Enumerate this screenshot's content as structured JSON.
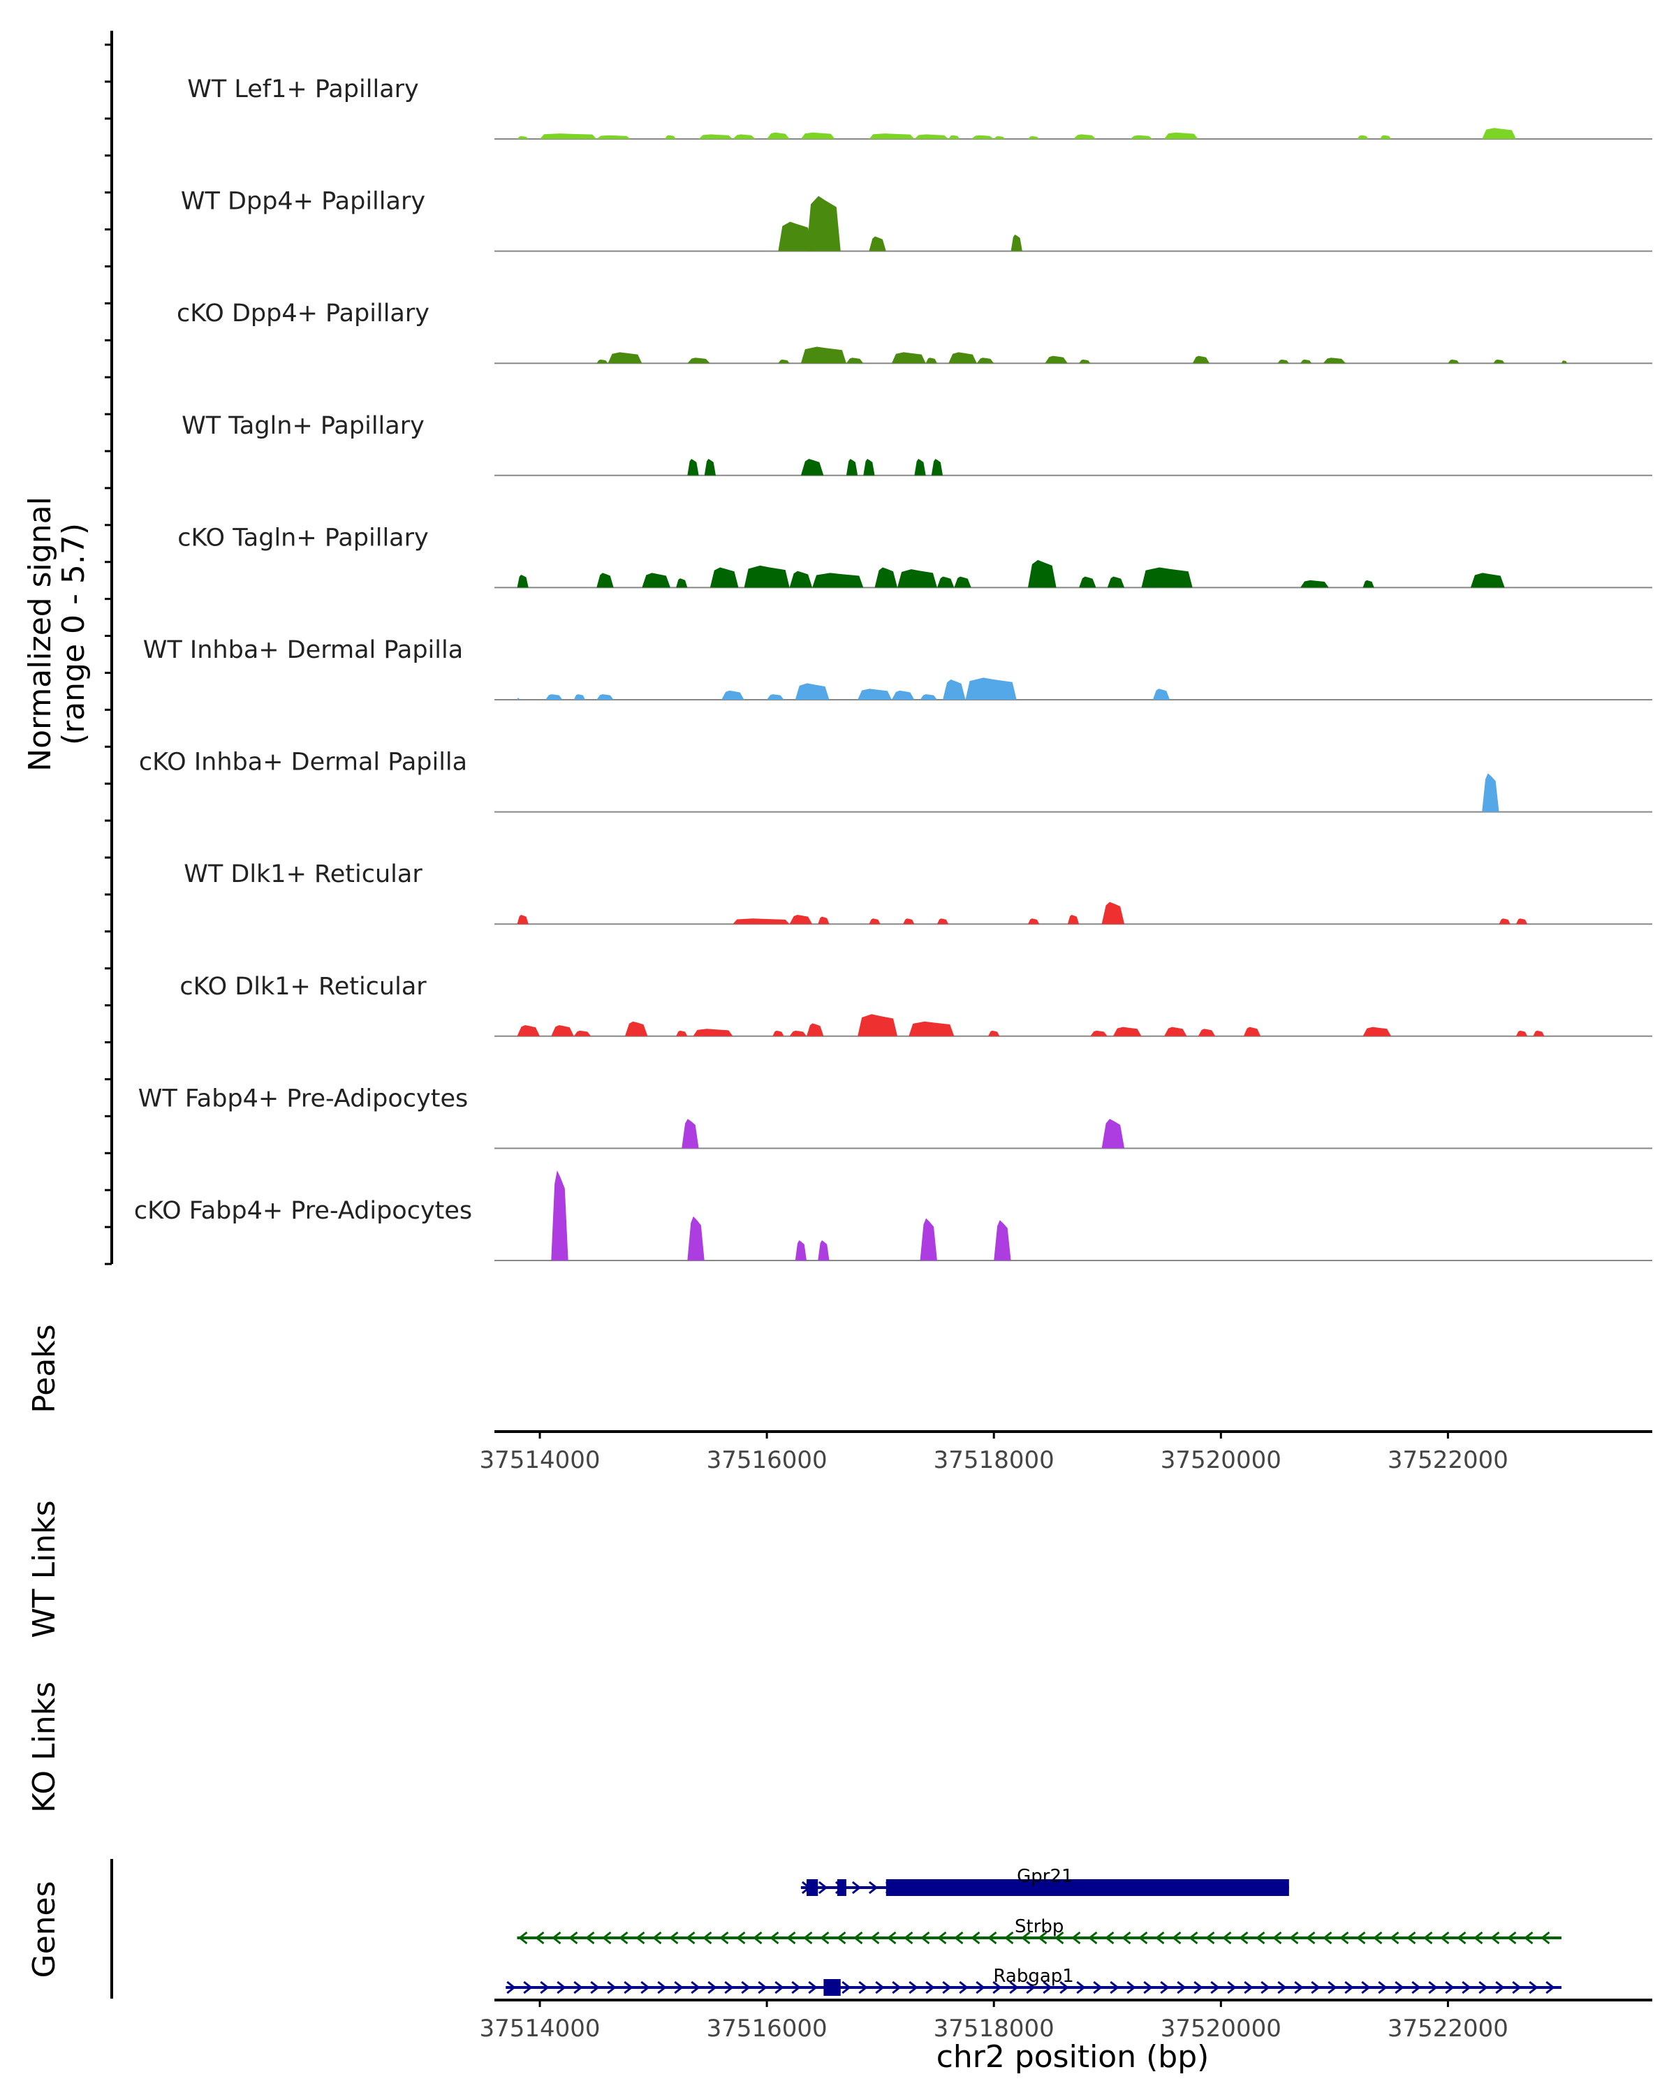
{
  "chart_data": {
    "type": "area",
    "subtype": "genome-coverage-tracks",
    "y_axis_label": "Normalized signal",
    "y_axis_range_label": "(range 0 - 5.7)",
    "ylim": [
      0,
      5.7
    ],
    "x_axis_label": "chr2 position (bp)",
    "xlim": [
      37513600,
      37523800
    ],
    "x_ticks": [
      {
        "value": 37514000,
        "label": "37514000"
      },
      {
        "value": 37516000,
        "label": "37516000"
      },
      {
        "value": 37518000,
        "label": "37518000"
      },
      {
        "value": 37520000,
        "label": "37520000"
      },
      {
        "value": 37522000,
        "label": "37522000"
      }
    ],
    "tracks": [
      {
        "name": "WT Lef1+ Papillary",
        "color": "#7cd424",
        "peaks": [
          {
            "start": 37513800,
            "end": 37513900,
            "h": 0.15
          },
          {
            "start": 37514000,
            "end": 37514500,
            "h": 0.3
          },
          {
            "start": 37514500,
            "end": 37514800,
            "h": 0.2
          },
          {
            "start": 37515100,
            "end": 37515200,
            "h": 0.2
          },
          {
            "start": 37515400,
            "end": 37515700,
            "h": 0.25
          },
          {
            "start": 37515700,
            "end": 37515900,
            "h": 0.25
          },
          {
            "start": 37516000,
            "end": 37516200,
            "h": 0.35
          },
          {
            "start": 37516300,
            "end": 37516600,
            "h": 0.35
          },
          {
            "start": 37516900,
            "end": 37517300,
            "h": 0.3
          },
          {
            "start": 37517300,
            "end": 37517600,
            "h": 0.25
          },
          {
            "start": 37517600,
            "end": 37517700,
            "h": 0.2
          },
          {
            "start": 37517800,
            "end": 37518000,
            "h": 0.2
          },
          {
            "start": 37518000,
            "end": 37518100,
            "h": 0.15
          },
          {
            "start": 37518300,
            "end": 37518400,
            "h": 0.15
          },
          {
            "start": 37518700,
            "end": 37518900,
            "h": 0.25
          },
          {
            "start": 37519200,
            "end": 37519400,
            "h": 0.2
          },
          {
            "start": 37519500,
            "end": 37519800,
            "h": 0.35
          },
          {
            "start": 37521200,
            "end": 37521300,
            "h": 0.2
          },
          {
            "start": 37521400,
            "end": 37521500,
            "h": 0.2
          },
          {
            "start": 37522300,
            "end": 37522600,
            "h": 0.6
          }
        ]
      },
      {
        "name": "WT Dpp4+ Papillary",
        "color": "#4a8b0f",
        "peaks": [
          {
            "start": 37516100,
            "end": 37516400,
            "h": 1.6
          },
          {
            "start": 37516350,
            "end": 37516650,
            "h": 3.0
          },
          {
            "start": 37516900,
            "end": 37517050,
            "h": 0.8
          },
          {
            "start": 37518150,
            "end": 37518250,
            "h": 0.9
          }
        ]
      },
      {
        "name": "cKO Dpp4+ Papillary",
        "color": "#4a8b0f",
        "peaks": [
          {
            "start": 37514500,
            "end": 37514600,
            "h": 0.2
          },
          {
            "start": 37514600,
            "end": 37514900,
            "h": 0.6
          },
          {
            "start": 37515300,
            "end": 37515500,
            "h": 0.3
          },
          {
            "start": 37516100,
            "end": 37516200,
            "h": 0.2
          },
          {
            "start": 37516300,
            "end": 37516700,
            "h": 0.9
          },
          {
            "start": 37516700,
            "end": 37516850,
            "h": 0.3
          },
          {
            "start": 37517100,
            "end": 37517400,
            "h": 0.6
          },
          {
            "start": 37517400,
            "end": 37517500,
            "h": 0.3
          },
          {
            "start": 37517600,
            "end": 37517850,
            "h": 0.6
          },
          {
            "start": 37517850,
            "end": 37518000,
            "h": 0.3
          },
          {
            "start": 37518450,
            "end": 37518650,
            "h": 0.4
          },
          {
            "start": 37518750,
            "end": 37518850,
            "h": 0.2
          },
          {
            "start": 37519750,
            "end": 37519900,
            "h": 0.4
          },
          {
            "start": 37520500,
            "end": 37520600,
            "h": 0.2
          },
          {
            "start": 37520700,
            "end": 37520800,
            "h": 0.2
          },
          {
            "start": 37520900,
            "end": 37521100,
            "h": 0.3
          },
          {
            "start": 37522000,
            "end": 37522100,
            "h": 0.2
          },
          {
            "start": 37522400,
            "end": 37522500,
            "h": 0.2
          },
          {
            "start": 37523000,
            "end": 37523050,
            "h": 0.15
          }
        ]
      },
      {
        "name": "WT Tagln+ Papillary",
        "color": "#006400",
        "peaks": [
          {
            "start": 37515300,
            "end": 37515400,
            "h": 0.9
          },
          {
            "start": 37515450,
            "end": 37515550,
            "h": 0.9
          },
          {
            "start": 37516300,
            "end": 37516500,
            "h": 0.9
          },
          {
            "start": 37516700,
            "end": 37516800,
            "h": 0.9
          },
          {
            "start": 37516850,
            "end": 37516950,
            "h": 0.9
          },
          {
            "start": 37517300,
            "end": 37517400,
            "h": 0.9
          },
          {
            "start": 37517450,
            "end": 37517550,
            "h": 0.9
          }
        ]
      },
      {
        "name": "cKO Tagln+ Papillary",
        "color": "#006400",
        "peaks": [
          {
            "start": 37513800,
            "end": 37513900,
            "h": 0.7
          },
          {
            "start": 37514500,
            "end": 37514650,
            "h": 0.8
          },
          {
            "start": 37514900,
            "end": 37515150,
            "h": 0.8
          },
          {
            "start": 37515200,
            "end": 37515300,
            "h": 0.5
          },
          {
            "start": 37515500,
            "end": 37515750,
            "h": 1.1
          },
          {
            "start": 37515800,
            "end": 37516200,
            "h": 1.2
          },
          {
            "start": 37516200,
            "end": 37516400,
            "h": 0.9
          },
          {
            "start": 37516400,
            "end": 37516850,
            "h": 0.8
          },
          {
            "start": 37516950,
            "end": 37517150,
            "h": 1.1
          },
          {
            "start": 37517150,
            "end": 37517500,
            "h": 1.0
          },
          {
            "start": 37517500,
            "end": 37517650,
            "h": 0.6
          },
          {
            "start": 37517650,
            "end": 37517800,
            "h": 0.6
          },
          {
            "start": 37518300,
            "end": 37518550,
            "h": 1.5
          },
          {
            "start": 37518750,
            "end": 37518900,
            "h": 0.6
          },
          {
            "start": 37519000,
            "end": 37519150,
            "h": 0.6
          },
          {
            "start": 37519300,
            "end": 37519750,
            "h": 1.1
          },
          {
            "start": 37520700,
            "end": 37520950,
            "h": 0.4
          },
          {
            "start": 37521250,
            "end": 37521350,
            "h": 0.4
          },
          {
            "start": 37522200,
            "end": 37522500,
            "h": 0.8
          }
        ]
      },
      {
        "name": "WT Inhba+ Dermal Papilla",
        "color": "#55a8e8",
        "peaks": [
          {
            "start": 37513800,
            "end": 37513820,
            "h": 0.1
          },
          {
            "start": 37514050,
            "end": 37514200,
            "h": 0.3
          },
          {
            "start": 37514300,
            "end": 37514400,
            "h": 0.3
          },
          {
            "start": 37514500,
            "end": 37514650,
            "h": 0.3
          },
          {
            "start": 37515600,
            "end": 37515800,
            "h": 0.5
          },
          {
            "start": 37516000,
            "end": 37516150,
            "h": 0.3
          },
          {
            "start": 37516250,
            "end": 37516550,
            "h": 0.9
          },
          {
            "start": 37516800,
            "end": 37517100,
            "h": 0.6
          },
          {
            "start": 37517100,
            "end": 37517300,
            "h": 0.5
          },
          {
            "start": 37517350,
            "end": 37517500,
            "h": 0.3
          },
          {
            "start": 37517550,
            "end": 37517750,
            "h": 1.1
          },
          {
            "start": 37517750,
            "end": 37518200,
            "h": 1.2
          },
          {
            "start": 37519400,
            "end": 37519550,
            "h": 0.6
          }
        ]
      },
      {
        "name": "cKO Inhba+ Dermal Papilla",
        "color": "#55a8e8",
        "peaks": [
          {
            "start": 37522300,
            "end": 37522450,
            "h": 2.1
          }
        ]
      },
      {
        "name": "WT Dlk1+ Reticular",
        "color": "#ee3030",
        "peaks": [
          {
            "start": 37513800,
            "end": 37513900,
            "h": 0.5
          },
          {
            "start": 37515700,
            "end": 37516200,
            "h": 0.3
          },
          {
            "start": 37516200,
            "end": 37516400,
            "h": 0.5
          },
          {
            "start": 37516450,
            "end": 37516550,
            "h": 0.4
          },
          {
            "start": 37516900,
            "end": 37517000,
            "h": 0.3
          },
          {
            "start": 37517200,
            "end": 37517300,
            "h": 0.3
          },
          {
            "start": 37517500,
            "end": 37517600,
            "h": 0.3
          },
          {
            "start": 37518300,
            "end": 37518400,
            "h": 0.3
          },
          {
            "start": 37518650,
            "end": 37518750,
            "h": 0.5
          },
          {
            "start": 37518950,
            "end": 37519150,
            "h": 1.2
          },
          {
            "start": 37522450,
            "end": 37522550,
            "h": 0.3
          },
          {
            "start": 37522600,
            "end": 37522700,
            "h": 0.3
          }
        ]
      },
      {
        "name": "cKO Dlk1+ Reticular",
        "color": "#ee3030",
        "peaks": [
          {
            "start": 37513800,
            "end": 37514000,
            "h": 0.6
          },
          {
            "start": 37514100,
            "end": 37514300,
            "h": 0.6
          },
          {
            "start": 37514300,
            "end": 37514450,
            "h": 0.3
          },
          {
            "start": 37514750,
            "end": 37514950,
            "h": 0.8
          },
          {
            "start": 37515200,
            "end": 37515300,
            "h": 0.3
          },
          {
            "start": 37515350,
            "end": 37515700,
            "h": 0.4
          },
          {
            "start": 37516050,
            "end": 37516150,
            "h": 0.3
          },
          {
            "start": 37516200,
            "end": 37516350,
            "h": 0.3
          },
          {
            "start": 37516350,
            "end": 37516500,
            "h": 0.7
          },
          {
            "start": 37516800,
            "end": 37517150,
            "h": 1.2
          },
          {
            "start": 37517250,
            "end": 37517650,
            "h": 0.8
          },
          {
            "start": 37517950,
            "end": 37518050,
            "h": 0.3
          },
          {
            "start": 37518850,
            "end": 37519000,
            "h": 0.3
          },
          {
            "start": 37519050,
            "end": 37519300,
            "h": 0.5
          },
          {
            "start": 37519500,
            "end": 37519700,
            "h": 0.5
          },
          {
            "start": 37519800,
            "end": 37519950,
            "h": 0.4
          },
          {
            "start": 37520200,
            "end": 37520350,
            "h": 0.5
          },
          {
            "start": 37521250,
            "end": 37521500,
            "h": 0.5
          },
          {
            "start": 37522600,
            "end": 37522700,
            "h": 0.3
          },
          {
            "start": 37522750,
            "end": 37522850,
            "h": 0.3
          }
        ]
      },
      {
        "name": "WT Fabp4+ Pre-Adipocytes",
        "color": "#ad3de0",
        "peaks": [
          {
            "start": 37515250,
            "end": 37515400,
            "h": 1.6
          },
          {
            "start": 37518950,
            "end": 37519150,
            "h": 1.6
          }
        ]
      },
      {
        "name": "cKO Fabp4+ Pre-Adipocytes",
        "color": "#ad3de0",
        "peaks": [
          {
            "start": 37514100,
            "end": 37514250,
            "h": 4.9
          },
          {
            "start": 37515300,
            "end": 37515450,
            "h": 2.4
          },
          {
            "start": 37516250,
            "end": 37516350,
            "h": 1.1
          },
          {
            "start": 37516450,
            "end": 37516550,
            "h": 1.1
          },
          {
            "start": 37517350,
            "end": 37517500,
            "h": 2.3
          },
          {
            "start": 37518000,
            "end": 37518150,
            "h": 2.2
          }
        ]
      }
    ],
    "panels": {
      "peaks": "Peaks",
      "wt_links": "WT Links",
      "ko_links": "KO Links",
      "genes": "Genes"
    },
    "genes": [
      {
        "name": "Gpr21",
        "strand": "+",
        "start": 37516300,
        "end": 37520600,
        "color": "#00008b",
        "exons": [
          [
            37516350,
            37516450
          ],
          [
            37516620,
            37516700
          ],
          [
            37517050,
            37520600
          ]
        ]
      },
      {
        "name": "Strbp",
        "strand": "-",
        "start": 37513800,
        "end": 37523000,
        "color": "#006400",
        "exons": []
      },
      {
        "name": "Rabgap1",
        "strand": "+",
        "start": 37513700,
        "end": 37523000,
        "color": "#00008b",
        "exons": [
          [
            37516500,
            37516650
          ]
        ]
      }
    ]
  }
}
